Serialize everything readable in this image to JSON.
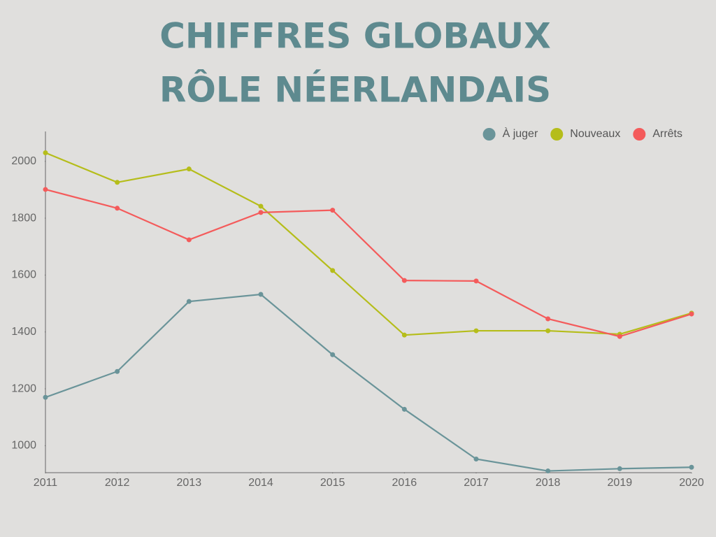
{
  "chart_data": {
    "type": "line",
    "title": [
      "CHIFFRES GLOBAUX",
      "RÔLE NÉERLANDAIS"
    ],
    "x": [
      2011,
      2012,
      2013,
      2014,
      2015,
      2016,
      2017,
      2018,
      2019,
      2020
    ],
    "xlim": [
      2011,
      2020
    ],
    "xticks": [
      2011,
      2012,
      2013,
      2014,
      2015,
      2016,
      2017,
      2018,
      2019,
      2020
    ],
    "ylim": [
      905,
      2105
    ],
    "yticks": [
      1000,
      1200,
      1400,
      1600,
      1800,
      2000
    ],
    "grid": false,
    "legend": "top-right",
    "series": [
      {
        "name": "À juger",
        "color": "#6a9499",
        "values": [
          1170,
          1261,
          1507,
          1532,
          1320,
          1128,
          953,
          911,
          919,
          924
        ]
      },
      {
        "name": "Nouveaux",
        "color": "#b5bd1a",
        "values": [
          2030,
          1926,
          1973,
          1842,
          1616,
          1389,
          1404,
          1404,
          1392,
          1466
        ]
      },
      {
        "name": "Arrêts",
        "color": "#f45b5b",
        "values": [
          1901,
          1835,
          1724,
          1820,
          1828,
          1581,
          1579,
          1446,
          1384,
          1463
        ]
      }
    ]
  }
}
